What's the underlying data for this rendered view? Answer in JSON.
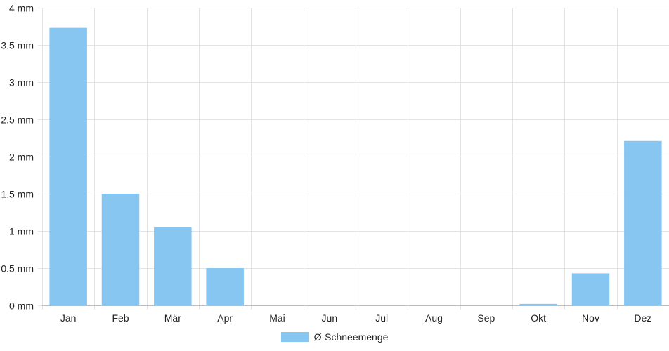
{
  "chart_data": {
    "type": "bar",
    "categories": [
      "Jan",
      "Feb",
      "Mär",
      "Apr",
      "Mai",
      "Jun",
      "Jul",
      "Aug",
      "Sep",
      "Okt",
      "Nov",
      "Dez"
    ],
    "series": [
      {
        "name": "Ø-Schneemenge",
        "values": [
          3.73,
          1.5,
          1.05,
          0.5,
          0,
          0,
          0,
          0,
          0,
          0.02,
          0.43,
          2.21
        ]
      }
    ],
    "ylim": [
      0,
      4
    ],
    "yticks": [
      0,
      0.5,
      1,
      1.5,
      2,
      2.5,
      3,
      3.5,
      4
    ],
    "yunit": "mm",
    "grid": true,
    "legend": "bottom",
    "colors": {
      "bar": "#88c6f2",
      "grid": "#e3e3e3",
      "axis": "#bdbdbd",
      "text": "#222222"
    }
  }
}
